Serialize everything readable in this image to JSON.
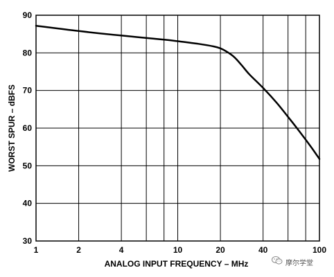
{
  "chart_data": {
    "type": "line",
    "title": "",
    "xlabel": "ANALOG INPUT FREQUENCY – MHz",
    "ylabel": "WORST SPUR – dBFS",
    "x_scale": "log",
    "xlim": [
      1,
      100
    ],
    "ylim": [
      30,
      90
    ],
    "x_ticks": [
      1,
      2,
      4,
      10,
      20,
      40,
      100
    ],
    "x_tick_labels": [
      "1",
      "2",
      "4",
      "10",
      "20",
      "40",
      "100"
    ],
    "y_ticks": [
      30,
      40,
      50,
      60,
      70,
      80,
      90
    ],
    "y_tick_labels": [
      "30",
      "40",
      "50",
      "60",
      "70",
      "80",
      "90"
    ],
    "grid": true,
    "series": [
      {
        "x": [
          1,
          2,
          4,
          8,
          10,
          14,
          18,
          20,
          22,
          25,
          28,
          32,
          40,
          50,
          60,
          70,
          80,
          90,
          100
        ],
        "y": [
          87.2,
          85.8,
          84.6,
          83.5,
          83.1,
          82.4,
          81.7,
          81.2,
          80.4,
          78.9,
          76.9,
          74.3,
          70.7,
          66.7,
          63.0,
          59.8,
          56.9,
          54.3,
          51.8
        ]
      }
    ]
  },
  "watermark": {
    "icon": "wechat-icon",
    "text": "摩尔学堂"
  }
}
